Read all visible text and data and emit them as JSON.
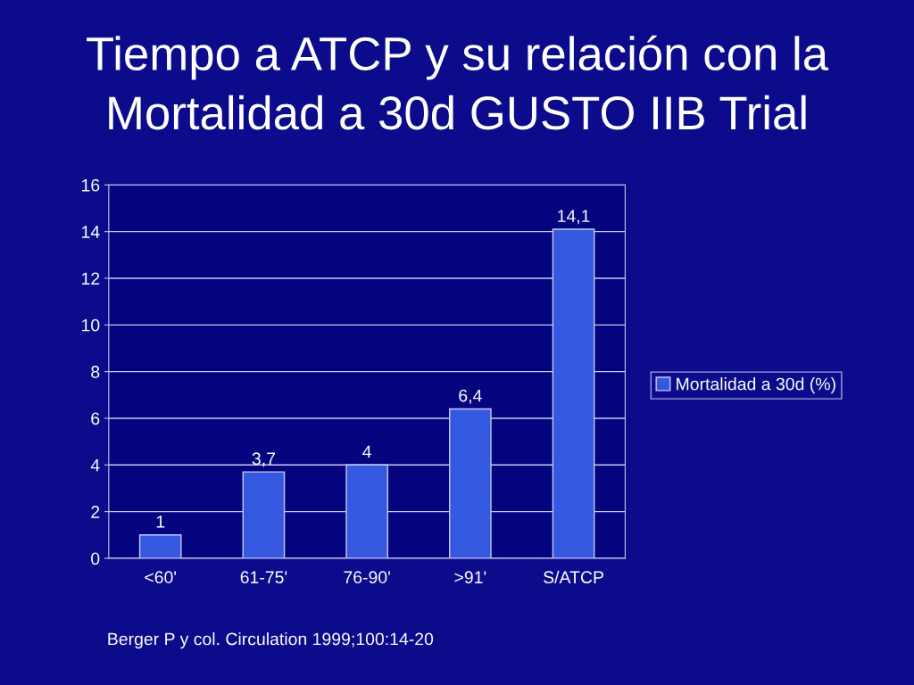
{
  "chart_data": {
    "type": "bar",
    "title": "Tiempo a ATCP y su relación con la Mortalidad a 30d GUSTO IIB Trial",
    "categories": [
      "<60'",
      "61-75'",
      "76-90'",
      ">91'",
      "S/ATCP"
    ],
    "series": [
      {
        "name": "Mortalidad a 30d (%)",
        "color": "#3558e0",
        "values": [
          1,
          3.7,
          4,
          6.4,
          14.1
        ],
        "value_labels": [
          "1",
          "3,7",
          "4",
          "6,4",
          "14,1"
        ]
      }
    ],
    "ylim": [
      0,
      16
    ],
    "yticks": [
      0,
      2,
      4,
      6,
      8,
      10,
      12,
      14,
      16
    ],
    "grid": "y",
    "legend": "right",
    "annotations": [
      "Berger P y col. Circulation 1999;100:14-20"
    ]
  }
}
